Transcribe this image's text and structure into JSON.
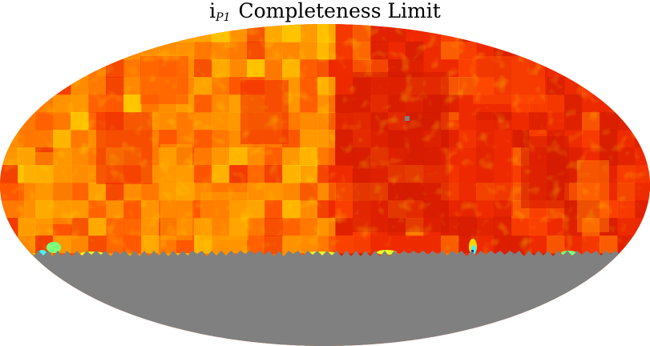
{
  "title": {
    "prefix": "i",
    "subscript": "P1",
    "main": "Completeness Limit"
  },
  "map": {
    "projection": "Mollweide",
    "colormap": "jet",
    "no_data_color": "#808080",
    "colors": {
      "deep_red": "#d21a00",
      "red": "#ee2a00",
      "red_orange": "#ff4a00",
      "orange": "#ff7800",
      "orange_yellow": "#ffa000",
      "yellow": "#ffd800",
      "light_yellow": "#e8ff20",
      "green": "#7dff7a",
      "cyan": "#3ef6ff",
      "blue": "#0030c0"
    }
  }
}
